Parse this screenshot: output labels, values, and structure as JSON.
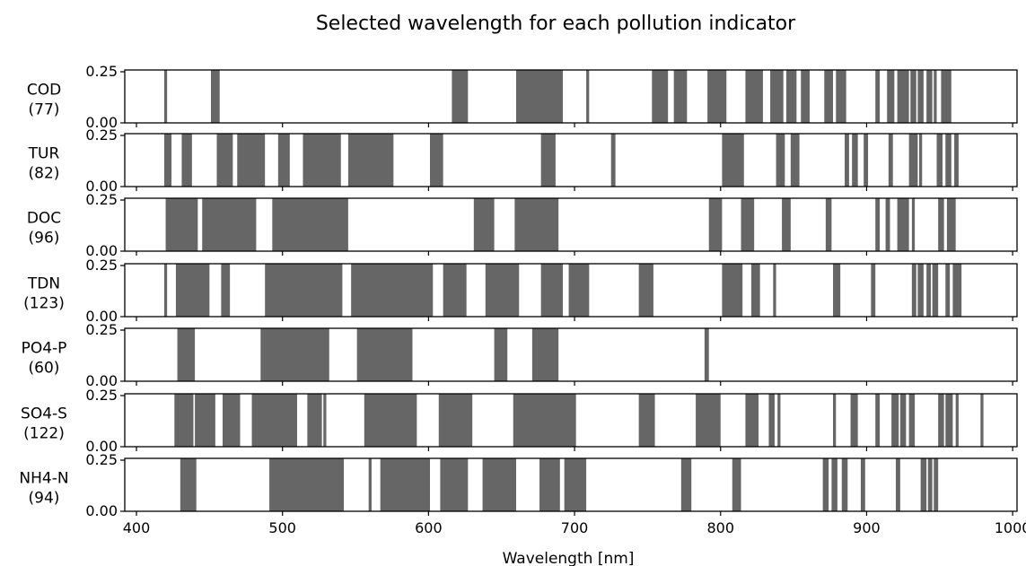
{
  "chart_data": {
    "type": "bar",
    "title": "Selected wavelength for each pollution indicator",
    "xlabel": "Wavelength [nm]",
    "ylabel": "",
    "xlim": [
      392,
      1003
    ],
    "ylim": [
      0,
      0.25
    ],
    "xticks": [
      "400",
      "500",
      "600",
      "700",
      "800",
      "900",
      "1000"
    ],
    "yticks": [
      "0.25",
      "0.00"
    ],
    "bar_color": "#666666",
    "series": [
      {
        "name": "COD",
        "count": "(77)",
        "segments": [
          [
            419,
            421
          ],
          [
            451,
            457
          ],
          [
            616,
            627
          ],
          [
            660,
            692
          ],
          [
            708,
            710
          ],
          [
            753,
            764
          ],
          [
            768,
            777
          ],
          [
            791,
            804
          ],
          [
            817,
            829
          ],
          [
            834,
            843
          ],
          [
            845,
            852
          ],
          [
            855,
            861
          ],
          [
            871,
            877
          ],
          [
            879,
            886
          ],
          [
            906,
            909
          ],
          [
            914,
            919
          ],
          [
            921,
            929
          ],
          [
            930,
            934
          ],
          [
            935,
            939
          ],
          [
            941,
            945
          ],
          [
            946,
            948
          ],
          [
            951,
            958
          ]
        ]
      },
      {
        "name": "TUR",
        "count": "(82)",
        "segments": [
          [
            419,
            424
          ],
          [
            431,
            438
          ],
          [
            455,
            466
          ],
          [
            469,
            488
          ],
          [
            497,
            505
          ],
          [
            514,
            540
          ],
          [
            545,
            576
          ],
          [
            601,
            610
          ],
          [
            677,
            687
          ],
          [
            725,
            728
          ],
          [
            801,
            816
          ],
          [
            838,
            844
          ],
          [
            848,
            854
          ],
          [
            885,
            888
          ],
          [
            890,
            894
          ],
          [
            898,
            901
          ],
          [
            915,
            918
          ],
          [
            929,
            935
          ],
          [
            936,
            938
          ],
          [
            948,
            952
          ],
          [
            954,
            958
          ],
          [
            960,
            963
          ]
        ]
      },
      {
        "name": "DOC",
        "count": "(96)",
        "segments": [
          [
            420,
            442
          ],
          [
            445,
            482
          ],
          [
            493,
            545
          ],
          [
            631,
            645
          ],
          [
            659,
            689
          ],
          [
            792,
            801
          ],
          [
            814,
            823
          ],
          [
            842,
            848
          ],
          [
            872,
            876
          ],
          [
            906,
            909
          ],
          [
            913,
            916
          ],
          [
            921,
            929
          ],
          [
            931,
            933
          ],
          [
            949,
            953
          ],
          [
            955,
            961
          ]
        ]
      },
      {
        "name": "TDN",
        "count": "(123)",
        "segments": [
          [
            419,
            421
          ],
          [
            427,
            450
          ],
          [
            458,
            464
          ],
          [
            488,
            541
          ],
          [
            547,
            603
          ],
          [
            610,
            626
          ],
          [
            639,
            662
          ],
          [
            677,
            692
          ],
          [
            696,
            710
          ],
          [
            744,
            754
          ],
          [
            801,
            815
          ],
          [
            821,
            827
          ],
          [
            836,
            838
          ],
          [
            877,
            882
          ],
          [
            903,
            906
          ],
          [
            931,
            934
          ],
          [
            935,
            939
          ],
          [
            941,
            944
          ],
          [
            945,
            949
          ],
          [
            954,
            957
          ],
          [
            959,
            965
          ]
        ]
      },
      {
        "name": "PO4-P",
        "count": "(60)",
        "segments": [
          [
            428,
            440
          ],
          [
            485,
            532
          ],
          [
            551,
            589
          ],
          [
            645,
            654
          ],
          [
            671,
            689
          ],
          [
            789,
            792
          ]
        ]
      },
      {
        "name": "SO4-S",
        "count": "(122)",
        "segments": [
          [
            426,
            439
          ],
          [
            440,
            454
          ],
          [
            459,
            471
          ],
          [
            479,
            510
          ],
          [
            517,
            527
          ],
          [
            528,
            530
          ],
          [
            556,
            592
          ],
          [
            607,
            630
          ],
          [
            658,
            701
          ],
          [
            744,
            755
          ],
          [
            783,
            800
          ],
          [
            817,
            826
          ],
          [
            833,
            837
          ],
          [
            839,
            841
          ],
          [
            877,
            879
          ],
          [
            889,
            894
          ],
          [
            906,
            909
          ],
          [
            917,
            922
          ],
          [
            923,
            927
          ],
          [
            929,
            933
          ],
          [
            949,
            953
          ],
          [
            954,
            959
          ],
          [
            961,
            963
          ],
          [
            978,
            980
          ]
        ]
      },
      {
        "name": "NH4-N",
        "count": "(94)",
        "segments": [
          [
            430,
            441
          ],
          [
            491,
            542
          ],
          [
            559,
            561
          ],
          [
            567,
            601
          ],
          [
            608,
            627
          ],
          [
            637,
            660
          ],
          [
            676,
            690
          ],
          [
            693,
            708
          ],
          [
            773,
            780
          ],
          [
            808,
            814
          ],
          [
            870,
            874
          ],
          [
            876,
            880
          ],
          [
            883,
            887
          ],
          [
            896,
            899
          ],
          [
            920,
            923
          ],
          [
            937,
            941
          ],
          [
            942,
            945
          ],
          [
            946,
            949
          ]
        ]
      }
    ]
  }
}
